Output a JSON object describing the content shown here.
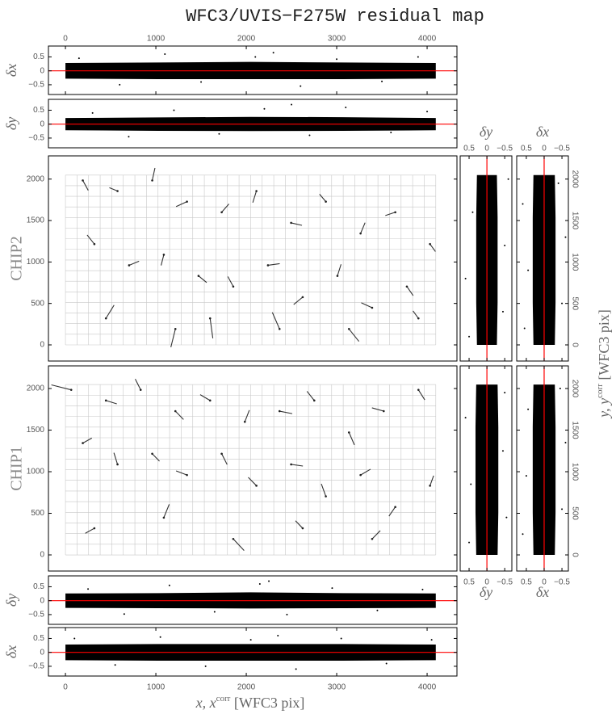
{
  "title": "WFC3/UVIS−F275W residual map",
  "xlabel": {
    "main": "x, x",
    "sup": "corr",
    "tail": " [WFC3 pix]"
  },
  "ylabel_right": {
    "main": "y, y",
    "sup": "corr",
    "tail": " [WFC3 pix]"
  },
  "chart_data": [
    {
      "type": "scatter_band",
      "orientation": "horizontal",
      "ylabel": "δx",
      "xlim": [
        -188,
        4330
      ],
      "ylim": [
        -0.85,
        0.89
      ],
      "xticks": [
        0,
        1000,
        2000,
        3000,
        4000
      ],
      "yticks": [
        0.5,
        0,
        {
          "value": -0.5,
          "label": "−0.5"
        }
      ],
      "ref_line": 0,
      "ref_color": "#ff0000",
      "band": {
        "x": [
          0,
          1024,
          2048,
          3072,
          4096
        ],
        "lower": [
          -0.28,
          -0.3,
          -0.3,
          -0.3,
          -0.28
        ],
        "upper": [
          0.28,
          0.3,
          0.32,
          0.3,
          0.28
        ]
      },
      "points": {
        "x": [
          150,
          600,
          1100,
          1500,
          2100,
          2600,
          3000,
          3500,
          3900,
          2300
        ],
        "y": [
          0.45,
          -0.5,
          0.6,
          -0.4,
          0.5,
          -0.55,
          0.42,
          -0.38,
          0.5,
          0.65
        ]
      }
    },
    {
      "type": "scatter_band",
      "orientation": "horizontal",
      "ylabel": "δy",
      "xlim": [
        -188,
        4330
      ],
      "ylim": [
        -0.85,
        0.89
      ],
      "yticks": [
        0.5,
        0,
        {
          "value": -0.5,
          "label": "−0.5"
        }
      ],
      "ref_line": 0,
      "ref_color": "#ff0000",
      "band": {
        "x": [
          0,
          1024,
          2048,
          3072,
          4096
        ],
        "lower": [
          -0.22,
          -0.24,
          -0.25,
          -0.24,
          -0.22
        ],
        "upper": [
          0.22,
          0.24,
          0.26,
          0.25,
          0.22
        ]
      },
      "points": {
        "x": [
          300,
          700,
          1200,
          1700,
          2200,
          2700,
          3100,
          3600,
          4000,
          2500
        ],
        "y": [
          0.4,
          -0.45,
          0.5,
          -0.35,
          0.55,
          -0.4,
          0.6,
          -0.3,
          0.45,
          0.7
        ]
      }
    },
    {
      "type": "vector",
      "label": "CHIP2",
      "xlim": [
        -188,
        4330
      ],
      "ylim": [
        -195,
        2280
      ],
      "yticks": [
        0,
        500,
        1000,
        1500,
        2000
      ],
      "cell_grid": {
        "x": [
          0,
          4096
        ],
        "y": [
          0,
          2048
        ],
        "nx": 32,
        "ny": 16
      },
      "vectors": {
        "x": [
          192,
          576,
          960,
          1344,
          1728,
          2112,
          2496,
          2880,
          3264,
          3648,
          4032,
          320,
          704,
          1088,
          1472,
          1856,
          2240,
          2624,
          3008,
          3392,
          3776,
          448,
          1216,
          1600,
          2368,
          3136,
          3904
        ],
        "y": [
          1984,
          1856,
          1984,
          1728,
          1600,
          1856,
          1472,
          1728,
          1344,
          1600,
          1216,
          1216,
          960,
          1088,
          832,
          704,
          960,
          576,
          832,
          448,
          704,
          320,
          192,
          320,
          192,
          192,
          320
        ],
        "dx": [
          60,
          -90,
          30,
          -120,
          80,
          -40,
          120,
          -70,
          50,
          -110,
          60,
          -80,
          110,
          -30,
          90,
          -60,
          130,
          -100,
          40,
          -120,
          70,
          90,
          -50,
          30,
          -80,
          110,
          -60
        ],
        "dy": [
          -120,
          40,
          150,
          -60,
          100,
          -140,
          -30,
          90,
          130,
          -40,
          -90,
          110,
          50,
          -130,
          -80,
          120,
          20,
          -90,
          140,
          60,
          -110,
          160,
          -220,
          -240,
          200,
          -150,
          90
        ]
      }
    },
    {
      "type": "scatter_band",
      "orientation": "vertical",
      "title": "δy",
      "xlim": [
        0.75,
        -0.7
      ],
      "ylim": [
        -195,
        2280
      ],
      "xticks": [
        0.5,
        0,
        {
          "value": -0.5,
          "label": "−0.5"
        }
      ],
      "ref_line": 0,
      "ref_color": "#ff0000",
      "band": {
        "y": [
          0,
          512,
          1024,
          1536,
          2048
        ],
        "lower": [
          -0.28,
          -0.3,
          -0.3,
          -0.3,
          -0.28
        ],
        "upper": [
          0.28,
          0.3,
          0.3,
          0.3,
          0.28
        ]
      },
      "points": {
        "x": [
          0.5,
          -0.45,
          0.6,
          -0.5,
          0.4,
          -0.6
        ],
        "y": [
          100,
          400,
          800,
          1200,
          1600,
          2000
        ]
      }
    },
    {
      "type": "scatter_band",
      "orientation": "vertical",
      "title": "δx",
      "xlim": [
        0.77,
        -0.68
      ],
      "ylim": [
        -195,
        2280
      ],
      "xticks": [
        0.5,
        0,
        {
          "value": -0.5,
          "label": "−0.5"
        }
      ],
      "yticks": [
        0,
        500,
        1000,
        1500,
        2000
      ],
      "ref_line": 0,
      "ref_color": "#ff0000",
      "band": {
        "y": [
          0,
          512,
          1024,
          1536,
          2048
        ],
        "lower": [
          -0.3,
          -0.32,
          -0.32,
          -0.32,
          -0.3
        ],
        "upper": [
          0.3,
          0.32,
          0.32,
          0.32,
          0.3
        ]
      },
      "points": {
        "x": [
          0.55,
          -0.5,
          0.45,
          -0.6,
          0.6,
          -0.4
        ],
        "y": [
          200,
          500,
          900,
          1300,
          1700,
          1950
        ]
      }
    },
    {
      "type": "vector",
      "label": "CHIP1",
      "xlim": [
        -188,
        4330
      ],
      "ylim": [
        -194,
        2272
      ],
      "yticks": [
        0,
        500,
        1000,
        1500,
        2000
      ],
      "cell_grid": {
        "x": [
          0,
          4096
        ],
        "y": [
          0,
          2048
        ],
        "nx": 32,
        "ny": 16
      },
      "vectors": {
        "x": [
          64,
          448,
          832,
          1216,
          1600,
          1984,
          2368,
          2752,
          3136,
          3520,
          3904,
          192,
          576,
          960,
          1344,
          1728,
          2112,
          2496,
          2880,
          3264,
          3648,
          4032,
          320,
          1088,
          1856,
          2624,
          3392
        ],
        "y": [
          1984,
          1856,
          1984,
          1728,
          1856,
          1600,
          1728,
          1856,
          1472,
          1728,
          1984,
          1344,
          1088,
          1216,
          960,
          1216,
          832,
          1088,
          704,
          960,
          576,
          832,
          320,
          448,
          192,
          320,
          192
        ],
        "dx": [
          -220,
          120,
          -60,
          90,
          -110,
          50,
          140,
          -80,
          60,
          -130,
          70,
          100,
          -40,
          80,
          -120,
          60,
          -90,
          130,
          -50,
          110,
          -70,
          40,
          -100,
          60,
          120,
          -80,
          90
        ],
        "dy": [
          60,
          -40,
          130,
          -100,
          70,
          140,
          -30,
          110,
          -150,
          40,
          -120,
          60,
          140,
          -90,
          50,
          -130,
          100,
          -20,
          150,
          70,
          -110,
          120,
          -60,
          160,
          -140,
          90,
          100
        ]
      }
    },
    {
      "type": "scatter_band",
      "orientation": "vertical",
      "title": "δy",
      "xlim": [
        0.75,
        -0.7
      ],
      "ylim": [
        -194,
        2272
      ],
      "xticks": [
        0.5,
        0,
        {
          "value": -0.5,
          "label": "−0.5"
        }
      ],
      "ref_line": 0,
      "ref_color": "#ff0000",
      "band": {
        "y": [
          0,
          512,
          1024,
          1536,
          2048
        ],
        "lower": [
          -0.3,
          -0.32,
          -0.32,
          -0.32,
          -0.3
        ],
        "upper": [
          0.3,
          0.32,
          0.32,
          0.32,
          0.3
        ]
      },
      "points": {
        "x": [
          0.5,
          -0.55,
          0.45,
          -0.45,
          0.6,
          -0.5
        ],
        "y": [
          150,
          450,
          850,
          1250,
          1650,
          1950
        ]
      }
    },
    {
      "type": "scatter_band",
      "orientation": "vertical",
      "title": "δx",
      "xlim": [
        0.77,
        -0.68
      ],
      "ylim": [
        -194,
        2272
      ],
      "xticks": [
        0.5,
        0,
        {
          "value": -0.5,
          "label": "−0.5"
        }
      ],
      "yticks": [
        0,
        500,
        1000,
        1500,
        2000
      ],
      "ref_line": 0,
      "ref_color": "#ff0000",
      "band": {
        "y": [
          0,
          512,
          1024,
          1536,
          2048
        ],
        "lower": [
          -0.3,
          -0.32,
          -0.32,
          -0.32,
          -0.3
        ],
        "upper": [
          0.3,
          0.32,
          0.32,
          0.32,
          0.3
        ]
      },
      "points": {
        "x": [
          0.6,
          -0.5,
          0.5,
          -0.6,
          0.45,
          -0.45
        ],
        "y": [
          250,
          550,
          950,
          1350,
          1750,
          2000
        ]
      }
    },
    {
      "type": "scatter_band",
      "orientation": "horizontal",
      "ylabel": "δy",
      "xlim": [
        -188,
        4330
      ],
      "ylim": [
        -0.85,
        0.89
      ],
      "yticks": [
        0.5,
        0,
        {
          "value": -0.5,
          "label": "−0.5"
        }
      ],
      "ref_line": 0,
      "ref_color": "#ff0000",
      "band": {
        "x": [
          0,
          1024,
          2048,
          3072,
          4096
        ],
        "lower": [
          -0.26,
          -0.27,
          -0.28,
          -0.27,
          -0.26
        ],
        "upper": [
          0.26,
          0.27,
          0.3,
          0.27,
          0.26
        ]
      },
      "points": {
        "x": [
          250,
          650,
          1150,
          1650,
          2150,
          2450,
          2950,
          3450,
          3950,
          2250
        ],
        "y": [
          0.42,
          -0.48,
          0.55,
          -0.4,
          0.6,
          -0.5,
          0.45,
          -0.35,
          0.4,
          0.7
        ]
      }
    },
    {
      "type": "scatter_band",
      "orientation": "horizontal",
      "ylabel": "δx",
      "xlim": [
        -188,
        4330
      ],
      "ylim": [
        -0.85,
        0.89
      ],
      "xticks": [
        0,
        1000,
        2000,
        3000,
        4000
      ],
      "yticks": [
        0.5,
        0,
        {
          "value": -0.5,
          "label": "−0.5"
        }
      ],
      "ref_line": 0,
      "ref_color": "#ff0000",
      "band": {
        "x": [
          0,
          1024,
          2048,
          3072,
          4096
        ],
        "lower": [
          -0.28,
          -0.3,
          -0.3,
          -0.3,
          -0.28
        ],
        "upper": [
          0.28,
          0.3,
          0.3,
          0.3,
          0.28
        ]
      },
      "points": {
        "x": [
          100,
          550,
          1050,
          1550,
          2050,
          2550,
          3050,
          3550,
          4050,
          2350
        ],
        "y": [
          0.5,
          -0.45,
          0.55,
          -0.5,
          0.45,
          -0.6,
          0.5,
          -0.4,
          0.45,
          0.6
        ]
      }
    }
  ]
}
